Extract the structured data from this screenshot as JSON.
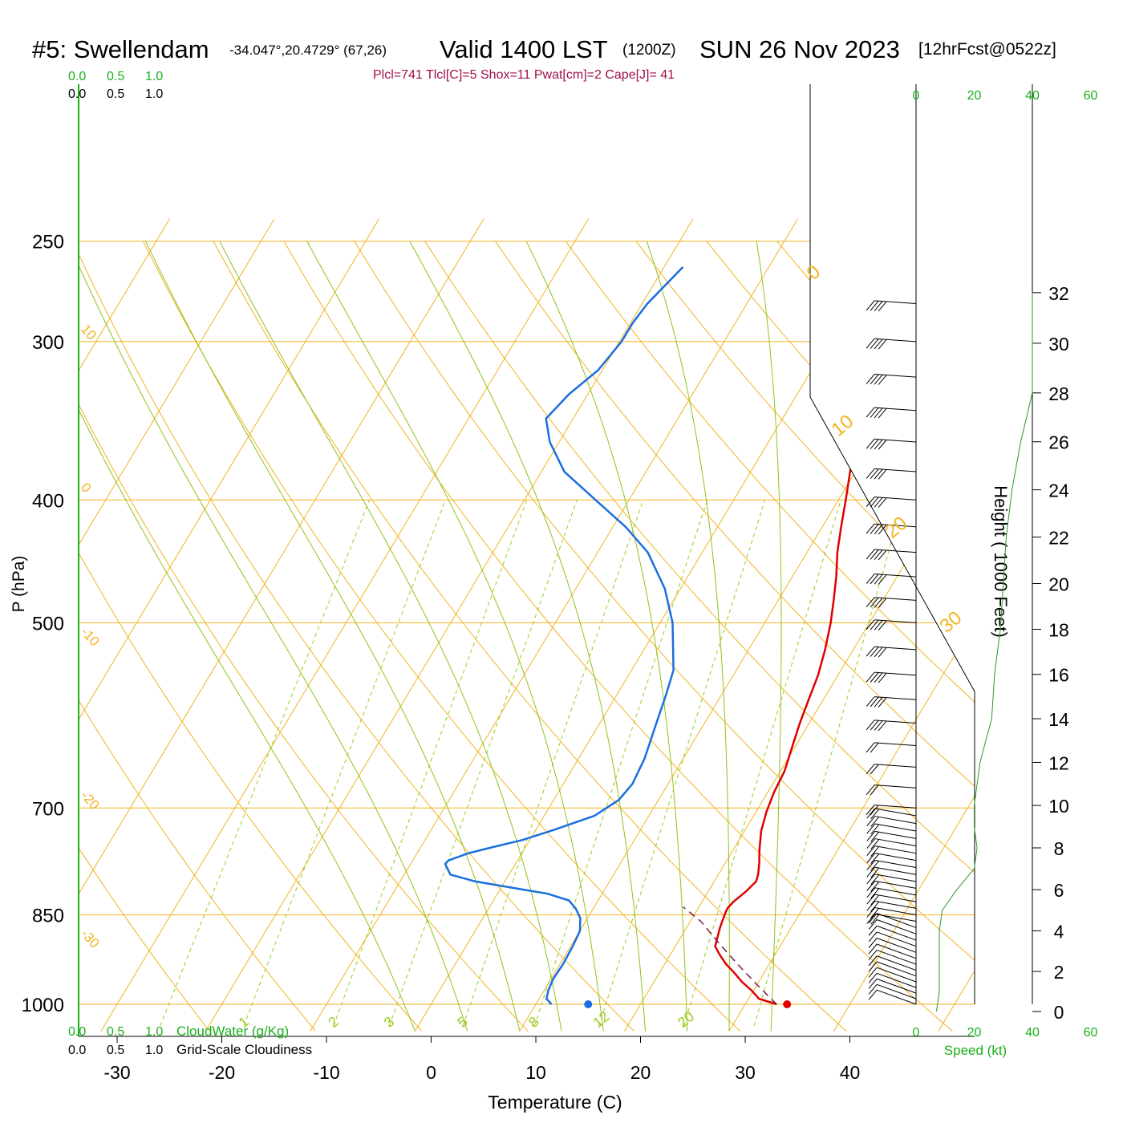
{
  "header": {
    "station": "#5: Swellendam",
    "coords": "-34.047°,20.4729° (67,26)",
    "valid": "Valid 1400 LST",
    "zulu": "(1200Z)",
    "date": "SUN 26 Nov 2023",
    "forecast": "[12hrFcst@0522z]",
    "indices": "Plcl=741 Tlcl[C]=5 Shox=11 Pwat[cm]=2 Cape[J]= 41"
  },
  "colors": {
    "temperature": "#e00000",
    "dewpoint": "#1a6fe0",
    "isotherm": "#f2b320",
    "mixing_ratio": "#9ccc1a",
    "moist_adiabat": "#8fc21a",
    "parcel": "#7a1a4a",
    "green_text": "#19b019",
    "indices": "#a0104a"
  },
  "chart_data": {
    "type": "line",
    "title": "#5: Swellendam -34.047°,20.4729° (67,26) Valid 1400 LST (1200Z) SUN 26 Nov 2023 [12hrFcst@0522z]",
    "xlabel": "Temperature (C)",
    "ylabel": "P (hPa)",
    "xlim": [
      -34,
      36
    ],
    "ylim": [
      1000,
      250
    ],
    "y_scale": "log",
    "x_ticks": [
      -30,
      -20,
      -10,
      0,
      10,
      20,
      30,
      40
    ],
    "pressure_ticks": [
      250,
      300,
      400,
      500,
      700,
      850,
      1000
    ],
    "series": [
      {
        "name": "Temperature",
        "points": [
          [
            33.0,
            1000
          ],
          [
            31.0,
            990
          ],
          [
            29.8,
            975
          ],
          [
            28.4,
            960
          ],
          [
            27.2,
            945
          ],
          [
            25.9,
            930
          ],
          [
            24.8,
            915
          ],
          [
            23.8,
            900
          ],
          [
            23.2,
            870
          ],
          [
            22.9,
            850
          ],
          [
            22.8,
            840
          ],
          [
            23.0,
            830
          ],
          [
            23.6,
            815
          ],
          [
            24.0,
            800
          ],
          [
            23.8,
            790
          ],
          [
            23.3,
            775
          ],
          [
            22.5,
            755
          ],
          [
            21.6,
            730
          ],
          [
            21.0,
            705
          ],
          [
            20.6,
            680
          ],
          [
            20.4,
            655
          ],
          [
            19.7,
            625
          ],
          [
            19.1,
            600
          ],
          [
            18.6,
            575
          ],
          [
            18.1,
            550
          ],
          [
            17.3,
            525
          ],
          [
            16.3,
            500
          ],
          [
            15.3,
            480
          ],
          [
            14.2,
            460
          ],
          [
            12.9,
            440
          ],
          [
            11.8,
            420
          ],
          [
            10.7,
            400
          ],
          [
            9.5,
            380
          ],
          [
            8.3,
            360
          ],
          [
            6.4,
            340
          ],
          [
            4.4,
            320
          ],
          [
            2.5,
            300
          ],
          [
            0.5,
            285
          ],
          [
            -1.8,
            270
          ],
          [
            -3.2,
            260
          ]
        ]
      },
      {
        "name": "Dewpoint",
        "points": [
          [
            11.5,
            1000
          ],
          [
            10.7,
            990
          ],
          [
            10.4,
            975
          ],
          [
            10.2,
            955
          ],
          [
            10.3,
            930
          ],
          [
            10.2,
            900
          ],
          [
            10.0,
            875
          ],
          [
            9.3,
            855
          ],
          [
            8.3,
            840
          ],
          [
            7.2,
            828
          ],
          [
            4.8,
            818
          ],
          [
            1.4,
            810
          ],
          [
            -2.8,
            800
          ],
          [
            -5.6,
            790
          ],
          [
            -6.7,
            775
          ],
          [
            -6.6,
            770
          ],
          [
            -5.1,
            760
          ],
          [
            -3.2,
            752
          ],
          [
            -0.7,
            742
          ],
          [
            1.8,
            728
          ],
          [
            4.8,
            710
          ],
          [
            6.2,
            690
          ],
          [
            6.6,
            670
          ],
          [
            6.3,
            640
          ],
          [
            5.4,
            600
          ],
          [
            4.7,
            570
          ],
          [
            4.0,
            545
          ],
          [
            1.2,
            500
          ],
          [
            -1.5,
            470
          ],
          [
            -5.2,
            440
          ],
          [
            -8.8,
            420
          ],
          [
            -13.2,
            400
          ],
          [
            -17.8,
            380
          ],
          [
            -20.9,
            360
          ],
          [
            -22.6,
            345
          ],
          [
            -21.8,
            330
          ],
          [
            -20.4,
            316
          ],
          [
            -19.8,
            300
          ],
          [
            -19.8,
            290
          ],
          [
            -19.5,
            280
          ],
          [
            -18.2,
            262
          ]
        ]
      },
      {
        "name": "Parcel",
        "points": [
          [
            33.0,
            1000
          ],
          [
            30.0,
            965
          ],
          [
            27.0,
            930
          ],
          [
            24.0,
            895
          ],
          [
            21.0,
            860
          ],
          [
            18.5,
            838
          ]
        ]
      }
    ],
    "surface_temperature": 34,
    "surface_dewpoint": 15,
    "isotherm_labels": [
      "10",
      "0",
      "-10",
      "-20",
      "-30",
      "0",
      "10",
      "20",
      "30"
    ],
    "mixing_ratio_labels": [
      "1",
      "2",
      "3",
      "5",
      "8",
      "12",
      "20"
    ],
    "height_axis": {
      "label": "Height ( 1000 Feet)",
      "ticks": [
        0,
        2,
        4,
        6,
        8,
        10,
        12,
        14,
        16,
        18,
        20,
        22,
        24,
        26,
        28,
        30,
        32
      ]
    },
    "wind": {
      "speed_label": "Speed (kt)",
      "speed_ticks": [
        0,
        20,
        40,
        60
      ],
      "profile_kt": [
        [
          0,
          7
        ],
        [
          1,
          8
        ],
        [
          2,
          8
        ],
        [
          3,
          8
        ],
        [
          4,
          8
        ],
        [
          5,
          9
        ],
        [
          6,
          14
        ],
        [
          7,
          20
        ],
        [
          8,
          21
        ],
        [
          9,
          20
        ],
        [
          10,
          20
        ],
        [
          11,
          21
        ],
        [
          12,
          22
        ],
        [
          13,
          24
        ],
        [
          14,
          26
        ],
        [
          16,
          27
        ],
        [
          18,
          29
        ],
        [
          20,
          30
        ],
        [
          22,
          31
        ],
        [
          24,
          33
        ],
        [
          26,
          36
        ],
        [
          28,
          40
        ],
        [
          29,
          40
        ],
        [
          30,
          40
        ],
        [
          32,
          40
        ]
      ]
    },
    "cloud": {
      "cloud_water_label": "CloudWater (g/Kg)",
      "cloudiness_label": "Grid-Scale Cloudiness",
      "scale_ticks": [
        "0.0",
        "0.5",
        "1.0"
      ]
    }
  }
}
